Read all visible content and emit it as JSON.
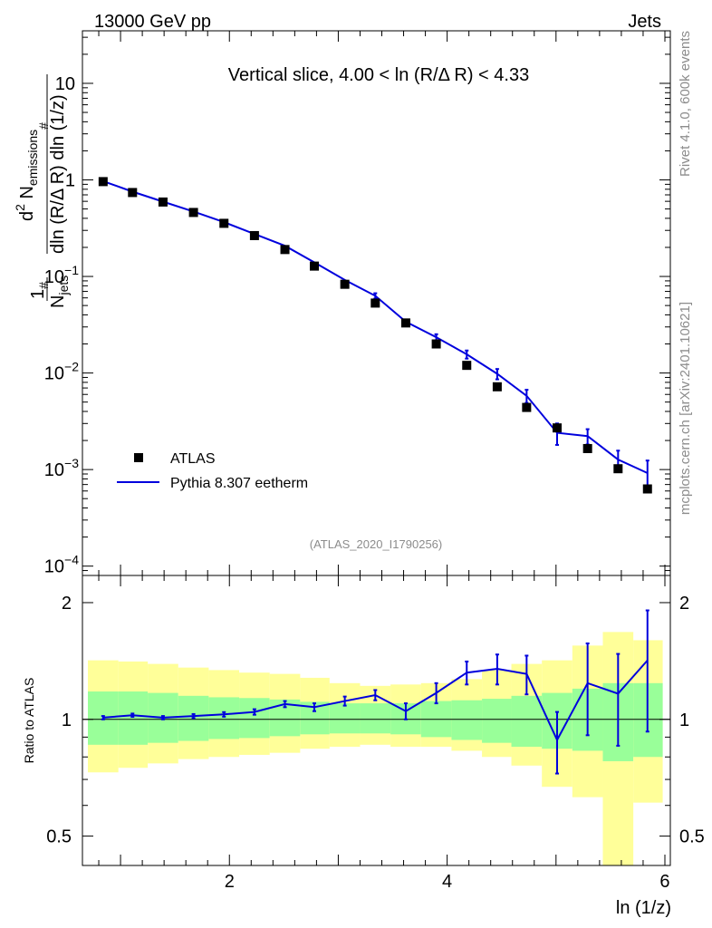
{
  "header": {
    "energy_label": "13000 GeV pp",
    "category_label": "Jets"
  },
  "side_labels": {
    "rivet": "Rivet 4.1.0,  600k events",
    "mcplots": "mcplots.cern.ch [arXiv:2401.10621]"
  },
  "chart_data": [
    {
      "type": "scatter",
      "panel": "main",
      "title": "Vertical slice, 4.00 < ln (R/Δ R) < 4.33",
      "ylabel_parts": {
        "frac_num": "1",
        "frac_num_sub": "#",
        "frac_den": "N",
        "frac_den_sub": "jets",
        "num_d": "d",
        "num_d_sup": "2",
        "num_N": " N",
        "num_N_sub": "emissions",
        "num_hash": "#",
        "den_a": "dln (R/Δ R) dln (1/z)"
      },
      "yscale": "log",
      "ylim": [
        8e-05,
        35
      ],
      "xlim": [
        0.65,
        6.05
      ],
      "yticks": [
        {
          "value": 10,
          "base": "10",
          "exp": ""
        },
        {
          "value": 1,
          "base": "1",
          "exp": ""
        },
        {
          "value": 0.1,
          "base": "10",
          "exp": "−1"
        },
        {
          "value": 0.01,
          "base": "10",
          "exp": "−2"
        },
        {
          "value": 0.001,
          "base": "10",
          "exp": "−3"
        },
        {
          "value": 0.0001,
          "base": "10",
          "exp": "−4"
        }
      ],
      "legend_position": "bottom-left",
      "watermark": "(ATLAS_2020_I1790256)",
      "series": [
        {
          "name": "ATLAS",
          "style": "markers",
          "color": "#000000",
          "x": [
            0.84,
            1.11,
            1.39,
            1.67,
            1.95,
            2.23,
            2.51,
            2.78,
            3.06,
            3.34,
            3.62,
            3.9,
            4.18,
            4.46,
            4.73,
            5.01,
            5.29,
            5.57,
            5.84
          ],
          "y": [
            0.96,
            0.74,
            0.59,
            0.46,
            0.355,
            0.265,
            0.19,
            0.128,
            0.083,
            0.053,
            0.033,
            0.02,
            0.012,
            0.0072,
            0.0044,
            0.0027,
            0.00165,
            0.00102,
            0.00063
          ]
        },
        {
          "name": "Pythia 8.307 eetherm",
          "style": "line",
          "color": "#0000dd",
          "x": [
            0.84,
            1.11,
            1.39,
            1.67,
            1.95,
            2.23,
            2.51,
            2.78,
            3.06,
            3.34,
            3.62,
            3.9,
            4.18,
            4.46,
            4.73,
            5.01,
            5.29,
            5.57,
            5.84
          ],
          "y": [
            0.97,
            0.755,
            0.596,
            0.47,
            0.365,
            0.275,
            0.208,
            0.14,
            0.092,
            0.063,
            0.034,
            0.0235,
            0.0156,
            0.0098,
            0.0058,
            0.0024,
            0.00222,
            0.00127,
            0.00092
          ],
          "yerr": [
            0.01,
            0.008,
            0.006,
            0.005,
            0.004,
            0.004,
            0.004,
            0.003,
            0.003,
            0.004,
            0.0015,
            0.0017,
            0.0015,
            0.0012,
            0.0009,
            0.0006,
            0.0004,
            0.0003,
            0.00032
          ]
        }
      ]
    },
    {
      "type": "line",
      "panel": "ratio",
      "ylabel": "Ratio to ATLAS",
      "yscale": "log",
      "ylim": [
        0.42,
        2.35
      ],
      "xlim": [
        0.65,
        6.05
      ],
      "yticks": [
        0.5,
        1,
        2
      ],
      "ytick_labels": [
        "0.5",
        "1",
        "2"
      ],
      "xticks": [
        2,
        4,
        6
      ],
      "xtick_labels": [
        "2",
        "4",
        "6"
      ],
      "xlabel": "ln (1/z)",
      "bands": {
        "edges": [
          0.7,
          0.98,
          1.25,
          1.53,
          1.81,
          2.09,
          2.37,
          2.65,
          2.92,
          3.2,
          3.48,
          3.76,
          4.04,
          4.32,
          4.59,
          4.87,
          5.15,
          5.43,
          5.71,
          5.98
        ],
        "green_low": [
          0.86,
          0.86,
          0.87,
          0.88,
          0.89,
          0.895,
          0.905,
          0.915,
          0.92,
          0.92,
          0.915,
          0.9,
          0.885,
          0.87,
          0.85,
          0.84,
          0.83,
          0.78,
          0.8
        ],
        "green_high": [
          1.18,
          1.18,
          1.17,
          1.15,
          1.14,
          1.135,
          1.125,
          1.11,
          1.1,
          1.1,
          1.1,
          1.115,
          1.12,
          1.13,
          1.15,
          1.17,
          1.2,
          1.24,
          1.24
        ],
        "yellow_low": [
          0.73,
          0.75,
          0.77,
          0.79,
          0.8,
          0.81,
          0.82,
          0.84,
          0.85,
          0.86,
          0.85,
          0.85,
          0.83,
          0.8,
          0.76,
          0.67,
          0.63,
          0.42,
          0.61
        ],
        "yellow_high": [
          1.42,
          1.41,
          1.39,
          1.36,
          1.34,
          1.32,
          1.31,
          1.28,
          1.24,
          1.22,
          1.23,
          1.24,
          1.27,
          1.34,
          1.39,
          1.42,
          1.55,
          1.68,
          1.6
        ]
      },
      "series": [
        {
          "name": "Pythia 8.307 eetherm / ATLAS",
          "color": "#0000dd",
          "x": [
            0.84,
            1.11,
            1.39,
            1.67,
            1.95,
            2.23,
            2.51,
            2.78,
            3.06,
            3.34,
            3.62,
            3.9,
            4.18,
            4.46,
            4.73,
            5.01,
            5.29,
            5.57,
            5.84
          ],
          "y": [
            1.01,
            1.025,
            1.01,
            1.02,
            1.03,
            1.045,
            1.095,
            1.075,
            1.115,
            1.155,
            1.05,
            1.17,
            1.32,
            1.35,
            1.31,
            0.885,
            1.24,
            1.165,
            1.42
          ],
          "yerr": [
            0.01,
            0.01,
            0.01,
            0.012,
            0.014,
            0.017,
            0.02,
            0.025,
            0.03,
            0.035,
            0.05,
            0.07,
            0.09,
            0.12,
            0.15,
            0.16,
            0.33,
            0.31,
            0.49
          ]
        }
      ],
      "reference_line": 1
    }
  ]
}
